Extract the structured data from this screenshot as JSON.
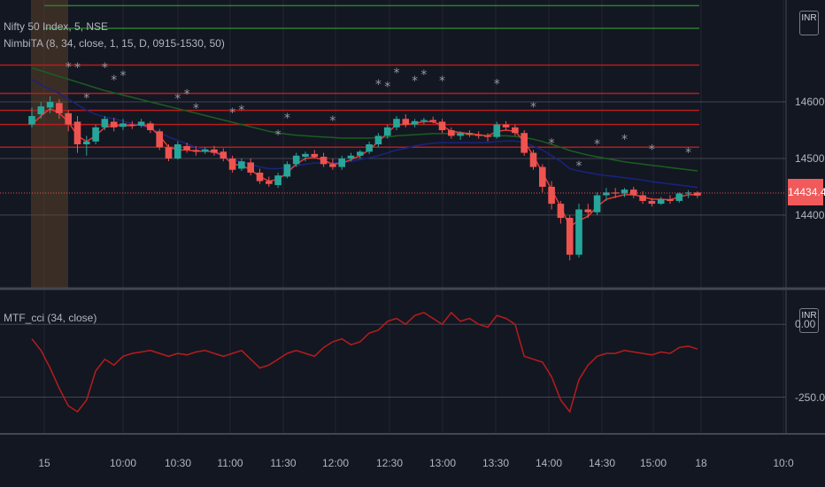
{
  "header": {
    "symbol_line": "Nifty 50 Index, 5, NSE",
    "indicator_line": "NimbiTA (8, 34, close, 1, 15, D, 0915-1530, 50)"
  },
  "lower_pane": {
    "title": "MTF_cci (34, close)"
  },
  "currency": "INR",
  "last_price_label": "14434.40",
  "colors": {
    "background": "#131722",
    "up": "#26a69a",
    "down": "#ef5350",
    "ema_fast": "#e53935",
    "ema_slow_blue": "#1a237e",
    "ema_slow_green": "#1b5e20",
    "level_red": "#b71c1c",
    "level_green": "#2e7d32",
    "cci": "#b71c1c"
  },
  "chart_data": [
    {
      "type": "candlestick",
      "title": "Nifty 50 Index, 5, NSE",
      "y_ticks": [
        {
          "value": 14600,
          "label": "14600.00"
        },
        {
          "value": 14500,
          "label": "14500.00"
        },
        {
          "value": 14400,
          "label": "14400.00"
        }
      ],
      "x_ticks": [
        "15",
        "10:00",
        "10:30",
        "11:00",
        "11:30",
        "12:00",
        "12:30",
        "13:00",
        "13:30",
        "14:00",
        "14:30",
        "15:00",
        "18",
        "10:0"
      ],
      "last_price": 14434.4,
      "ylim": [
        14270,
        14780
      ],
      "candles": [
        [
          14560,
          14590,
          14555,
          14575
        ],
        [
          14578,
          14600,
          14570,
          14592
        ],
        [
          14590,
          14610,
          14580,
          14600
        ],
        [
          14598,
          14605,
          14570,
          14580
        ],
        [
          14580,
          14585,
          14548,
          14560
        ],
        [
          14565,
          14575,
          14510,
          14525
        ],
        [
          14525,
          14540,
          14505,
          14530
        ],
        [
          14530,
          14560,
          14525,
          14555
        ],
        [
          14555,
          14575,
          14550,
          14570
        ],
        [
          14565,
          14572,
          14548,
          14555
        ],
        [
          14556,
          14570,
          14550,
          14562
        ],
        [
          14560,
          14566,
          14552,
          14558
        ],
        [
          14558,
          14570,
          14555,
          14565
        ],
        [
          14562,
          14566,
          14545,
          14550
        ],
        [
          14548,
          14552,
          14515,
          14520
        ],
        [
          14520,
          14525,
          14495,
          14500
        ],
        [
          14500,
          14530,
          14498,
          14525
        ],
        [
          14522,
          14528,
          14510,
          14515
        ],
        [
          14515,
          14522,
          14505,
          14512
        ],
        [
          14512,
          14520,
          14508,
          14516
        ],
        [
          14516,
          14522,
          14505,
          14510
        ],
        [
          14512,
          14518,
          14495,
          14500
        ],
        [
          14500,
          14505,
          14475,
          14480
        ],
        [
          14482,
          14500,
          14478,
          14495
        ],
        [
          14493,
          14500,
          14470,
          14475
        ],
        [
          14475,
          14482,
          14455,
          14460
        ],
        [
          14460,
          14468,
          14450,
          14455
        ],
        [
          14453,
          14475,
          14448,
          14470
        ],
        [
          14468,
          14495,
          14465,
          14490
        ],
        [
          14490,
          14510,
          14485,
          14505
        ],
        [
          14503,
          14512,
          14495,
          14508
        ],
        [
          14508,
          14515,
          14500,
          14503
        ],
        [
          14503,
          14510,
          14485,
          14490
        ],
        [
          14490,
          14500,
          14480,
          14485
        ],
        [
          14485,
          14505,
          14480,
          14500
        ],
        [
          14500,
          14510,
          14495,
          14505
        ],
        [
          14505,
          14515,
          14500,
          14512
        ],
        [
          14512,
          14530,
          14508,
          14525
        ],
        [
          14525,
          14545,
          14520,
          14540
        ],
        [
          14540,
          14560,
          14535,
          14555
        ],
        [
          14555,
          14575,
          14550,
          14570
        ],
        [
          14570,
          14578,
          14555,
          14560
        ],
        [
          14560,
          14570,
          14555,
          14566
        ],
        [
          14566,
          14572,
          14560,
          14568
        ],
        [
          14568,
          14574,
          14562,
          14565
        ],
        [
          14565,
          14570,
          14545,
          14550
        ],
        [
          14550,
          14555,
          14535,
          14540
        ],
        [
          14540,
          14548,
          14533,
          14545
        ],
        [
          14545,
          14550,
          14538,
          14542
        ],
        [
          14542,
          14548,
          14535,
          14540
        ],
        [
          14540,
          14545,
          14530,
          14538
        ],
        [
          14538,
          14565,
          14535,
          14560
        ],
        [
          14560,
          14566,
          14550,
          14555
        ],
        [
          14555,
          14560,
          14540,
          14545
        ],
        [
          14545,
          14550,
          14505,
          14510
        ],
        [
          14510,
          14515,
          14480,
          14485
        ],
        [
          14485,
          14490,
          14440,
          14450
        ],
        [
          14450,
          14460,
          14410,
          14420
        ],
        [
          14420,
          14425,
          14385,
          14395
        ],
        [
          14395,
          14400,
          14320,
          14330
        ],
        [
          14330,
          14420,
          14325,
          14410
        ],
        [
          14410,
          14420,
          14395,
          14405
        ],
        [
          14405,
          14440,
          14400,
          14435
        ],
        [
          14435,
          14448,
          14425,
          14440
        ],
        [
          14440,
          14448,
          14430,
          14438
        ],
        [
          14438,
          14448,
          14432,
          14445
        ],
        [
          14445,
          14450,
          14430,
          14435
        ],
        [
          14435,
          14442,
          14420,
          14425
        ],
        [
          14425,
          14430,
          14415,
          14420
        ],
        [
          14420,
          14432,
          14418,
          14428
        ],
        [
          14428,
          14435,
          14420,
          14425
        ],
        [
          14425,
          14440,
          14422,
          14438
        ],
        [
          14438,
          14444,
          14430,
          14440
        ],
        [
          14440,
          14442,
          14430,
          14434.4
        ]
      ],
      "ema_fast": [
        14560,
        14575,
        14588,
        14580,
        14565,
        14540,
        14530,
        14540,
        14555,
        14558,
        14558,
        14558,
        14560,
        14555,
        14540,
        14520,
        14515,
        14515,
        14513,
        14513,
        14512,
        14505,
        14490,
        14488,
        14480,
        14468,
        14460,
        14463,
        14475,
        14490,
        14500,
        14502,
        14497,
        14490,
        14492,
        14498,
        14505,
        14515,
        14530,
        14545,
        14560,
        14560,
        14562,
        14565,
        14565,
        14558,
        14548,
        14546,
        14544,
        14542,
        14540,
        14548,
        14550,
        14548,
        14530,
        14505,
        14475,
        14445,
        14415,
        14380,
        14390,
        14398,
        14415,
        14428,
        14432,
        14436,
        14436,
        14432,
        14428,
        14428,
        14427,
        14432,
        14436,
        14436
      ],
      "ema_slow_blue": [
        14640,
        14630,
        14622,
        14615,
        14605,
        14595,
        14585,
        14578,
        14573,
        14570,
        14566,
        14562,
        14558,
        14553,
        14546,
        14538,
        14532,
        14526,
        14520,
        14515,
        14510,
        14505,
        14498,
        14494,
        14490,
        14485,
        14482,
        14482,
        14484,
        14487,
        14490,
        14492,
        14492,
        14492,
        14493,
        14495,
        14498,
        14501,
        14505,
        14510,
        14515,
        14518,
        14522,
        14525,
        14527,
        14528,
        14528,
        14528,
        14528,
        14528,
        14528,
        14530,
        14531,
        14531,
        14528,
        14522,
        14515,
        14505,
        14495,
        14482,
        14478,
        14475,
        14472,
        14470,
        14468,
        14466,
        14464,
        14462,
        14459,
        14457,
        14455,
        14453,
        14451,
        14449
      ],
      "ema_slow_green": [
        14660,
        14655,
        14650,
        14645,
        14640,
        14635,
        14630,
        14625,
        14620,
        14616,
        14612,
        14608,
        14604,
        14600,
        14596,
        14592,
        14588,
        14584,
        14580,
        14576,
        14572,
        14568,
        14564,
        14560,
        14556,
        14552,
        14548,
        14545,
        14543,
        14541,
        14540,
        14539,
        14538,
        14537,
        14536,
        14536,
        14536,
        14536,
        14537,
        14538,
        14540,
        14541,
        14542,
        14543,
        14544,
        14544,
        14544,
        14543,
        14542,
        14541,
        14540,
        14540,
        14540,
        14539,
        14537,
        14534,
        14530,
        14525,
        14520,
        14514,
        14510,
        14506,
        14503,
        14500,
        14497,
        14494,
        14492,
        14490,
        14488,
        14486,
        14484,
        14482,
        14480,
        14478
      ],
      "levels_red": [
        14665,
        14615,
        14585,
        14560,
        14520
      ],
      "levels_green": [
        14770,
        14730
      ]
    },
    {
      "type": "line",
      "title": "MTF_cci (34, close)",
      "y_ticks": [
        {
          "value": 0,
          "label": "0.00"
        },
        {
          "value": -250,
          "label": "-250.00"
        }
      ],
      "ylim": [
        -370,
        110
      ],
      "values": [
        -50,
        -90,
        -150,
        -220,
        -280,
        -300,
        -260,
        -160,
        -120,
        -140,
        -110,
        -100,
        -95,
        -90,
        -100,
        -110,
        -100,
        -105,
        -95,
        -90,
        -100,
        -110,
        -100,
        -90,
        -120,
        -150,
        -140,
        -120,
        -100,
        -90,
        -100,
        -110,
        -80,
        -60,
        -50,
        -70,
        -60,
        -30,
        -20,
        10,
        20,
        0,
        30,
        40,
        20,
        0,
        40,
        10,
        20,
        0,
        -10,
        30,
        20,
        0,
        -110,
        -120,
        -130,
        -180,
        -260,
        -300,
        -190,
        -140,
        -110,
        -100,
        -100,
        -90,
        -95,
        -100,
        -105,
        -95,
        -100,
        -80,
        -75,
        -85
      ]
    }
  ]
}
